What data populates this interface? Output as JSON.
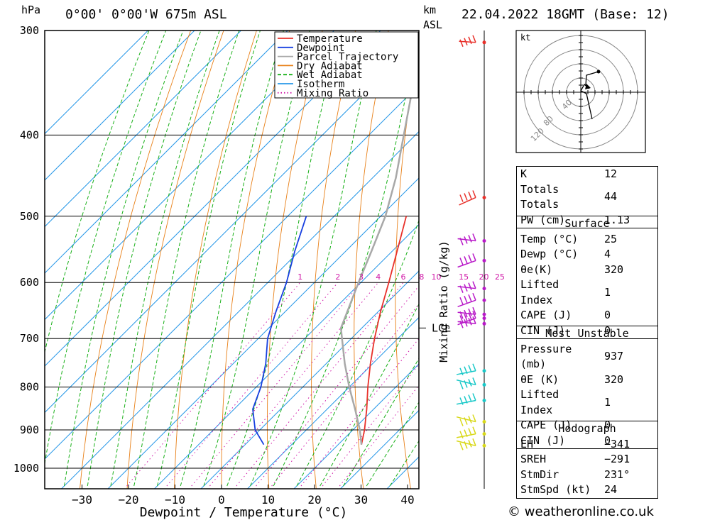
{
  "header": {
    "pressure_unit": "hPa",
    "location": "0°00' 0°00'W 675m ASL",
    "height_unit_1": "km",
    "height_unit_2": "ASL",
    "datetime": "22.04.2022 18GMT (Base: 12)"
  },
  "chart_data": {
    "type": "line",
    "title": "",
    "xlabel": "Dewpoint / Temperature (°C)",
    "ylabel": "hPa",
    "mixing_ratio_label": "Mixing Ratio (g/kg)",
    "xlim": [
      -38,
      42
    ],
    "pressure_range": [
      1050,
      300
    ],
    "x_ticks": [
      "−30",
      "−20",
      "−10",
      "0",
      "10",
      "20",
      "30",
      "40"
    ],
    "x_tick_values": [
      -30,
      -20,
      -10,
      0,
      10,
      20,
      30,
      40
    ],
    "y_ticks": [
      "300",
      "400",
      "500",
      "600",
      "700",
      "800",
      "900",
      "1000"
    ],
    "y_tick_values": [
      300,
      400,
      500,
      600,
      700,
      800,
      900,
      1000
    ],
    "mixing_ratio_labels": [
      "1",
      "2",
      "3",
      "4",
      "6",
      "8",
      "10",
      "15",
      "20",
      "25"
    ],
    "lcl_label": "LCL",
    "lcl_pressure": 680,
    "legend": {
      "placement": "top",
      "entries": [
        {
          "label": "Temperature",
          "color": "#e8302a",
          "style": "solid"
        },
        {
          "label": "Dewpoint",
          "color": "#1840e0",
          "style": "solid"
        },
        {
          "label": "Parcel Trajectory",
          "color": "#a8a8a8",
          "style": "solid"
        },
        {
          "label": "Dry Adiabat",
          "color": "#e88018",
          "style": "solid"
        },
        {
          "label": "Wet Adiabat",
          "color": "#18b018",
          "style": "dashed"
        },
        {
          "label": "Isotherm",
          "color": "#2898e8",
          "style": "solid"
        },
        {
          "label": "Mixing Ratio",
          "color": "#d018a8",
          "style": "dotted"
        }
      ]
    },
    "series": [
      {
        "name": "Temperature",
        "color": "#e8302a",
        "points": [
          [
            937,
            25
          ],
          [
            900,
            22.5
          ],
          [
            850,
            18.5
          ],
          [
            800,
            14
          ],
          [
            750,
            9.5
          ],
          [
            700,
            5
          ],
          [
            650,
            0.5
          ],
          [
            600,
            -4
          ],
          [
            550,
            -9
          ],
          [
            500,
            -14.5
          ]
        ]
      },
      {
        "name": "Dewpoint",
        "color": "#1840e0",
        "points": [
          [
            937,
            4
          ],
          [
            900,
            -1
          ],
          [
            850,
            -6
          ],
          [
            800,
            -9
          ],
          [
            750,
            -13
          ],
          [
            700,
            -18
          ],
          [
            650,
            -22
          ],
          [
            600,
            -26
          ],
          [
            550,
            -31
          ],
          [
            500,
            -36
          ]
        ]
      },
      {
        "name": "Parcel Trajectory",
        "color": "#a8a8a8",
        "points": [
          [
            937,
            25
          ],
          [
            900,
            21.5
          ],
          [
            850,
            16
          ],
          [
            800,
            10
          ],
          [
            750,
            4
          ],
          [
            700,
            -2
          ],
          [
            680,
            -4.5
          ],
          [
            600,
            -10.5
          ],
          [
            550,
            -14.5
          ],
          [
            500,
            -19
          ],
          [
            450,
            -25
          ],
          [
            400,
            -32.5
          ],
          [
            350,
            -41
          ],
          [
            310,
            -48
          ]
        ]
      }
    ],
    "wind_barbs_pressures": [
      310,
      475,
      535,
      565,
      610,
      630,
      655,
      662,
      672,
      765,
      795,
      830,
      880,
      910,
      940
    ],
    "hodograph": {
      "unit": "kt",
      "ring_labels": [
        "40",
        "80",
        "120"
      ]
    }
  },
  "indices": {
    "rows": [
      {
        "label": "K",
        "value": "12"
      },
      {
        "label": "Totals Totals",
        "value": "44"
      },
      {
        "label": "PW (cm)",
        "value": "1.13"
      }
    ]
  },
  "surface": {
    "title": "Surface",
    "rows": [
      {
        "label": "Temp (°C)",
        "value": "25"
      },
      {
        "label": "Dewp (°C)",
        "value": "4"
      },
      {
        "label": "θe(K)",
        "value": "320"
      },
      {
        "label": "Lifted Index",
        "value": "1"
      },
      {
        "label": "CAPE (J)",
        "value": "0"
      },
      {
        "label": "CIN (J)",
        "value": "0"
      }
    ]
  },
  "most_unstable": {
    "title": "Most Unstable",
    "rows": [
      {
        "label": "Pressure (mb)",
        "value": "937"
      },
      {
        "label": "θE (K)",
        "value": "320"
      },
      {
        "label": "Lifted Index",
        "value": "1"
      },
      {
        "label": "CAPE (J)",
        "value": "0"
      },
      {
        "label": "CIN (J)",
        "value": "0"
      }
    ]
  },
  "hodograph_table": {
    "title": "Hodograph",
    "rows": [
      {
        "label": "EH",
        "value": "−341"
      },
      {
        "label": "SREH",
        "value": "−291"
      },
      {
        "label": "StmDir",
        "value": "231°"
      },
      {
        "label": "StmSpd (kt)",
        "value": "24"
      }
    ]
  },
  "footer": {
    "credit": "© weatheronline.co.uk"
  }
}
